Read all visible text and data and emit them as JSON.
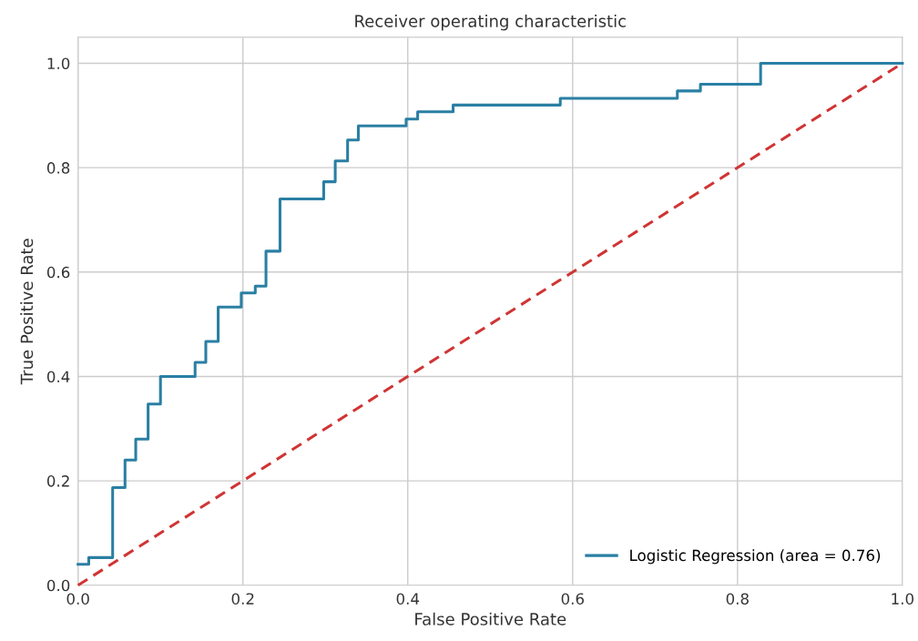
{
  "chart_data": {
    "type": "line",
    "title": "Receiver operating characteristic",
    "xlabel": "False Positive Rate",
    "ylabel": "True Positive Rate",
    "series": [
      {
        "name": "Logistic Regression (area = 0.76)",
        "color": "#2a7fa3",
        "line_style": "solid",
        "x": [
          0,
          0.013,
          0.013,
          0.042,
          0.042,
          0.057,
          0.057,
          0.07,
          0.07,
          0.085,
          0.085,
          0.1,
          0.1,
          0.142,
          0.142,
          0.155,
          0.155,
          0.17,
          0.17,
          0.198,
          0.198,
          0.215,
          0.215,
          0.228,
          0.228,
          0.245,
          0.245,
          0.298,
          0.298,
          0.312,
          0.312,
          0.327,
          0.327,
          0.34,
          0.34,
          0.398,
          0.398,
          0.412,
          0.412,
          0.455,
          0.455,
          0.585,
          0.585,
          0.727,
          0.727,
          0.755,
          0.755,
          0.828,
          0.828,
          1.0
        ],
        "values": [
          0.04,
          0.04,
          0.053,
          0.053,
          0.187,
          0.187,
          0.24,
          0.24,
          0.28,
          0.28,
          0.347,
          0.347,
          0.4,
          0.4,
          0.427,
          0.427,
          0.467,
          0.467,
          0.533,
          0.533,
          0.56,
          0.56,
          0.573,
          0.573,
          0.64,
          0.64,
          0.74,
          0.74,
          0.773,
          0.773,
          0.813,
          0.813,
          0.853,
          0.853,
          0.88,
          0.88,
          0.893,
          0.893,
          0.907,
          0.907,
          0.92,
          0.92,
          0.933,
          0.933,
          0.947,
          0.947,
          0.96,
          0.96,
          1.0,
          1.0
        ]
      },
      {
        "color": "#d03434",
        "line_style": "dashed",
        "x": [
          0,
          1
        ],
        "values": [
          0,
          1
        ]
      }
    ],
    "xlim": [
      0,
      1
    ],
    "ylim": [
      0,
      1.05
    ],
    "xticks": [
      {
        "value": 0,
        "label": "0.0"
      },
      {
        "value": 0.2,
        "label": "0.2"
      },
      {
        "value": 0.4,
        "label": "0.4"
      },
      {
        "value": 0.6,
        "label": "0.6"
      },
      {
        "value": 0.8,
        "label": "0.8"
      },
      {
        "value": 1,
        "label": "1.0"
      }
    ],
    "yticks": [
      {
        "value": 0,
        "label": "0.0"
      },
      {
        "value": 0.2,
        "label": "0.2"
      },
      {
        "value": 0.4,
        "label": "0.4"
      },
      {
        "value": 0.6,
        "label": "0.6"
      },
      {
        "value": 0.8,
        "label": "0.8"
      },
      {
        "value": 1,
        "label": "1.0"
      }
    ],
    "grid": true,
    "legend": "lower right"
  }
}
